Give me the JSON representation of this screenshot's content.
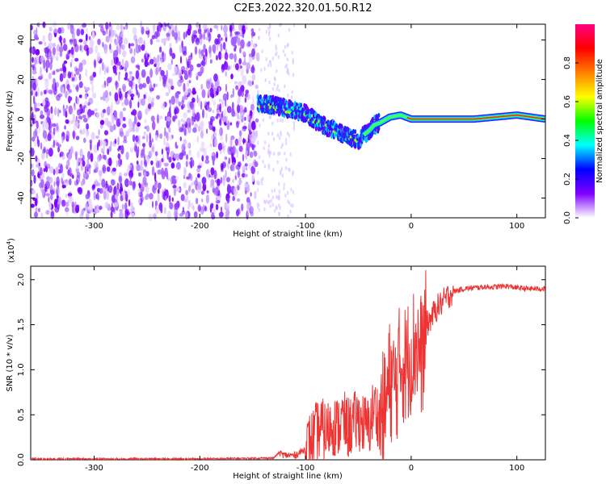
{
  "page": {
    "title": "C2E3.2022.320.01.50.R12"
  },
  "chart_data": [
    {
      "type": "heatmap",
      "title": "C2E3.2022.320.01.50.R12",
      "xlabel": "Height of straight line (km)",
      "ylabel": "Frequency (Hz)",
      "xlim": [
        -360,
        127
      ],
      "ylim": [
        -50,
        48
      ],
      "xticks": [
        -300,
        -200,
        -100,
        0,
        100
      ],
      "yticks": [
        -40,
        -20,
        0,
        20,
        40
      ],
      "xtick_labels": [
        "-300",
        "-200",
        "-100",
        "0",
        "100"
      ],
      "ytick_labels": [
        "-40",
        "-20",
        "0",
        "20",
        "40"
      ],
      "colorbar": {
        "label": "Normalized spectral amplitude",
        "range": [
          0.0,
          1.0
        ],
        "ticks": [
          0.0,
          0.2,
          0.4,
          0.6,
          0.8
        ],
        "tick_labels": [
          "0.0",
          "0.2",
          "0.4",
          "0.6",
          "0.8"
        ],
        "colors": [
          "#ffffff",
          "#7f00ff",
          "#0000ff",
          "#00ffff",
          "#00ff00",
          "#ffff00",
          "#ff7f00",
          "#ff0000",
          "#ff0080"
        ]
      },
      "signal_track": {
        "x": [
          -145,
          -130,
          -115,
          -100,
          -90,
          -80,
          -70,
          -60,
          -50,
          -45,
          -40,
          -35,
          -30,
          -20,
          -10,
          0,
          20,
          40,
          60,
          80,
          100,
          127
        ],
        "y": [
          8,
          7,
          5,
          3,
          -1,
          -4,
          -6,
          -9,
          -11,
          -8,
          -6,
          -3,
          -2,
          1,
          2,
          0,
          0,
          0,
          0,
          1,
          2,
          0
        ]
      },
      "noise_region_x": [
        -360,
        -145
      ]
    },
    {
      "type": "line",
      "xlabel": "Height of straight line (km)",
      "ylabel": "SNR (10 * v/v)",
      "y_multiplier": "(x10",
      "y_multiplier_exp": "4",
      "y_multiplier_close": ")",
      "xlim": [
        -360,
        127
      ],
      "ylim": [
        0.0,
        2.15
      ],
      "xticks": [
        -300,
        -200,
        -100,
        0,
        100
      ],
      "yticks": [
        0.0,
        0.5,
        1.0,
        1.5,
        2.0
      ],
      "xtick_labels": [
        "-300",
        "-200",
        "-100",
        "0",
        "100"
      ],
      "ytick_labels": [
        "0.0",
        "0.5",
        "1.0",
        "1.5",
        "2.0"
      ],
      "line_color": "#ee3333",
      "series": [
        {
          "x": [
            -360,
            -300,
            -200,
            -130,
            -125,
            -120,
            -110,
            -100,
            -95,
            -90,
            -85,
            -80,
            -75,
            -70,
            -65,
            -60,
            -55,
            -50,
            -45,
            -40,
            -35,
            -30,
            -25,
            -20,
            -15,
            -10,
            -5,
            0,
            5,
            10,
            15,
            20,
            25,
            30,
            35,
            40,
            50,
            60,
            70,
            80,
            90,
            100,
            110,
            127
          ],
          "y": [
            0.01,
            0.01,
            0.01,
            0.02,
            0.08,
            0.05,
            0.05,
            0.12,
            0.2,
            0.3,
            0.35,
            0.3,
            0.4,
            0.35,
            0.45,
            0.35,
            0.4,
            0.45,
            0.4,
            0.35,
            0.6,
            0.45,
            0.55,
            0.9,
            0.8,
            1.1,
            1.05,
            1.2,
            1.3,
            1.15,
            1.5,
            1.6,
            1.7,
            1.75,
            1.82,
            1.87,
            1.9,
            1.91,
            1.92,
            1.92,
            1.93,
            1.91,
            1.9,
            1.9
          ]
        }
      ]
    }
  ]
}
